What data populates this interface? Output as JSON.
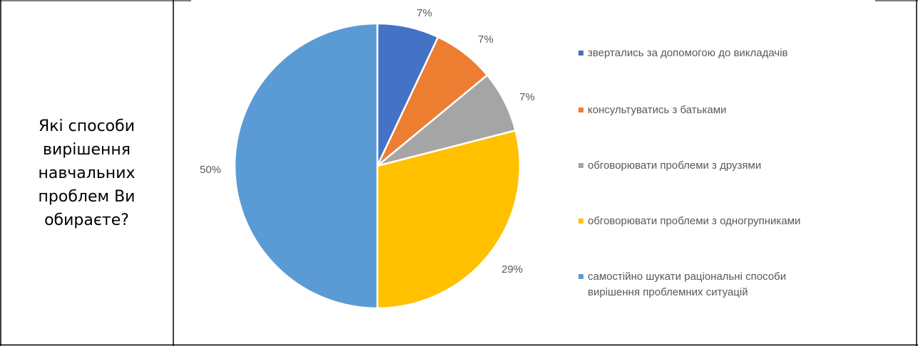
{
  "question": "Які способи вирішення навчальних проблем Ви обираєте?",
  "chart_data": {
    "type": "pie",
    "title": "",
    "start_angle_deg": 0,
    "direction": "clockwise",
    "legend_position": "right",
    "slices": [
      {
        "label": "звертались за допомогою до викладачів",
        "value": 7,
        "display": "7%",
        "color": "#4472C4"
      },
      {
        "label": "консультуватись з батьками",
        "value": 7,
        "display": "7%",
        "color": "#ED7D31"
      },
      {
        "label": "обговорювати проблеми з друзями",
        "value": 7,
        "display": "7%",
        "color": "#A5A5A5"
      },
      {
        "label": "обговорювати проблеми з одногрупниками",
        "value": 29,
        "display": "29%",
        "color": "#FFC000"
      },
      {
        "label": "самостійно шукати раціональні способи вирішення проблемних ситуацій",
        "value": 50,
        "display": "50%",
        "color": "#5B9BD5"
      }
    ],
    "legend_lines": [
      [
        "звертались за допомогою до викладачів"
      ],
      [
        "консультуватись з батьками"
      ],
      [
        "обговорювати проблеми з друзями"
      ],
      [
        "обговорювати проблеми з одногрупниками"
      ],
      [
        "самостійно шукати раціональні способи",
        "вирішення проблемних ситуацій"
      ]
    ]
  }
}
